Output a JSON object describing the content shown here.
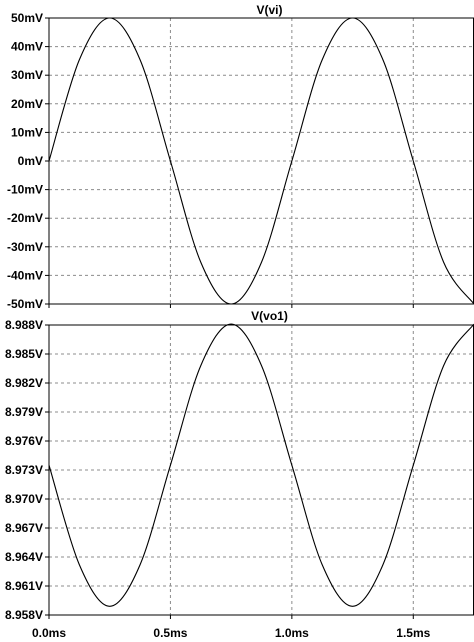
{
  "chart_data": [
    {
      "type": "line",
      "title": "V(vi)",
      "x_range_ms": [
        0,
        1.75
      ],
      "ylim": [
        -50,
        50
      ],
      "y_unit": "mV",
      "y_ticks": [
        "50mV",
        "40mV",
        "30mV",
        "20mV",
        "10mV",
        "0mV",
        "-10mV",
        "-20mV",
        "-30mV",
        "-40mV",
        "-50mV"
      ],
      "y_tick_values": [
        50,
        40,
        30,
        20,
        10,
        0,
        -10,
        -20,
        -30,
        -40,
        -50
      ],
      "grid": true,
      "series": [
        {
          "x": [
            0,
            0.125,
            0.25,
            0.375,
            0.5,
            0.625,
            0.75,
            0.875,
            1.0,
            1.125,
            1.25,
            1.375,
            1.5,
            1.625,
            1.75
          ],
          "values": [
            0,
            35.4,
            50,
            35.4,
            0,
            -35.4,
            -50,
            -35.4,
            0,
            35.4,
            50,
            35.4,
            0,
            -35.4,
            -50
          ]
        }
      ]
    },
    {
      "type": "line",
      "title": "V(vo1)",
      "x_range_ms": [
        0,
        1.75
      ],
      "ylim": [
        8.958,
        8.988
      ],
      "y_unit": "V",
      "y_ticks": [
        "8.988V",
        "8.985V",
        "8.982V",
        "8.979V",
        "8.976V",
        "8.973V",
        "8.970V",
        "8.967V",
        "8.964V",
        "8.961V",
        "8.958V"
      ],
      "y_tick_values": [
        8.988,
        8.985,
        8.982,
        8.979,
        8.976,
        8.973,
        8.97,
        8.967,
        8.964,
        8.961,
        8.958
      ],
      "grid": true,
      "series": [
        {
          "x": [
            0,
            0.125,
            0.25,
            0.375,
            0.5,
            0.625,
            0.75,
            0.875,
            1.0,
            1.125,
            1.25,
            1.375,
            1.5,
            1.625,
            1.75
          ],
          "values": [
            8.9735,
            8.9632,
            8.9589,
            8.9632,
            8.9735,
            8.9838,
            8.9881,
            8.9838,
            8.9735,
            8.9632,
            8.9589,
            8.9632,
            8.9735,
            8.9838,
            8.9881
          ]
        }
      ]
    }
  ],
  "x_ticks": [
    "0.0ms",
    "0.5ms",
    "1.0ms",
    "1.5ms"
  ],
  "x_tick_values": [
    0,
    0.5,
    1.0,
    1.5
  ]
}
